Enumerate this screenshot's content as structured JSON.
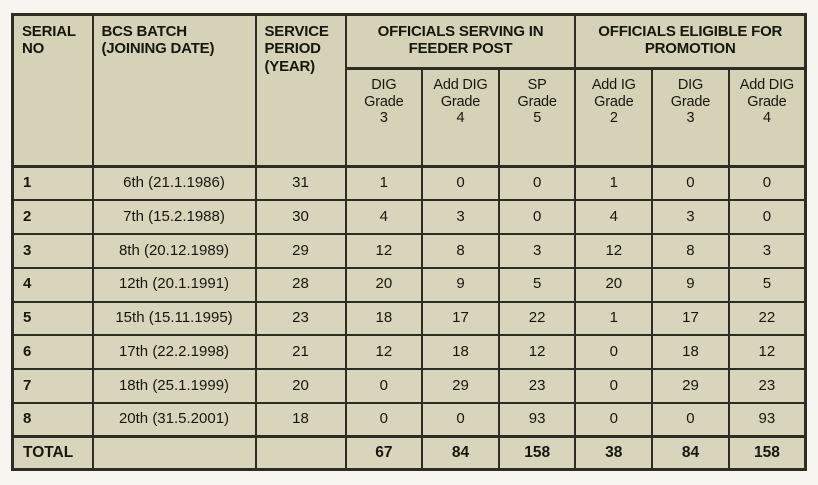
{
  "table": {
    "headers": {
      "serial": "SERIAL\nNO",
      "batch": "BCS BATCH\n(JOINING DATE)",
      "service": "SERVICE\nPERIOD\n(YEAR)",
      "group_feeder": "OFFICIALS SERVING IN\nFEEDER POST",
      "group_promotion": "OFFICIALS ELIGIBLE FOR\nPROMOTION",
      "sub": [
        "DIG\nGrade\n3",
        "Add DIG\nGrade\n4",
        "SP\nGrade\n5",
        "Add IG\nGrade\n2",
        "DIG\nGrade\n3",
        "Add DIG\nGrade\n4"
      ]
    },
    "rows": [
      {
        "serial": "1",
        "batch": "6th (21.1.1986)",
        "service": "31",
        "values": [
          "1",
          "0",
          "0",
          "1",
          "0",
          "0"
        ]
      },
      {
        "serial": "2",
        "batch": "7th (15.2.1988)",
        "service": "30",
        "values": [
          "4",
          "3",
          "0",
          "4",
          "3",
          "0"
        ]
      },
      {
        "serial": "3",
        "batch": "8th (20.12.1989)",
        "service": "29",
        "values": [
          "12",
          "8",
          "3",
          "12",
          "8",
          "3"
        ]
      },
      {
        "serial": "4",
        "batch": "12th (20.1.1991)",
        "service": "28",
        "values": [
          "20",
          "9",
          "5",
          "20",
          "9",
          "5"
        ]
      },
      {
        "serial": "5",
        "batch": "15th (15.11.1995)",
        "service": "23",
        "values": [
          "18",
          "17",
          "22",
          "1",
          "17",
          "22"
        ]
      },
      {
        "serial": "6",
        "batch": "17th (22.2.1998)",
        "service": "21",
        "values": [
          "12",
          "18",
          "12",
          "0",
          "18",
          "12"
        ]
      },
      {
        "serial": "7",
        "batch": "18th (25.1.1999)",
        "service": "20",
        "values": [
          "0",
          "29",
          "23",
          "0",
          "29",
          "23"
        ]
      },
      {
        "serial": "8",
        "batch": "20th (31.5.2001)",
        "service": "18",
        "values": [
          "0",
          "0",
          "93",
          "0",
          "0",
          "93"
        ]
      }
    ],
    "total": {
      "label": "TOTAL",
      "values": [
        "67",
        "84",
        "158",
        "38",
        "84",
        "158"
      ]
    }
  },
  "colors": {
    "table_background": "#d9d5bc",
    "header_background": "#d6d2b8",
    "border": "#2e2d24",
    "text": "#17170f"
  }
}
